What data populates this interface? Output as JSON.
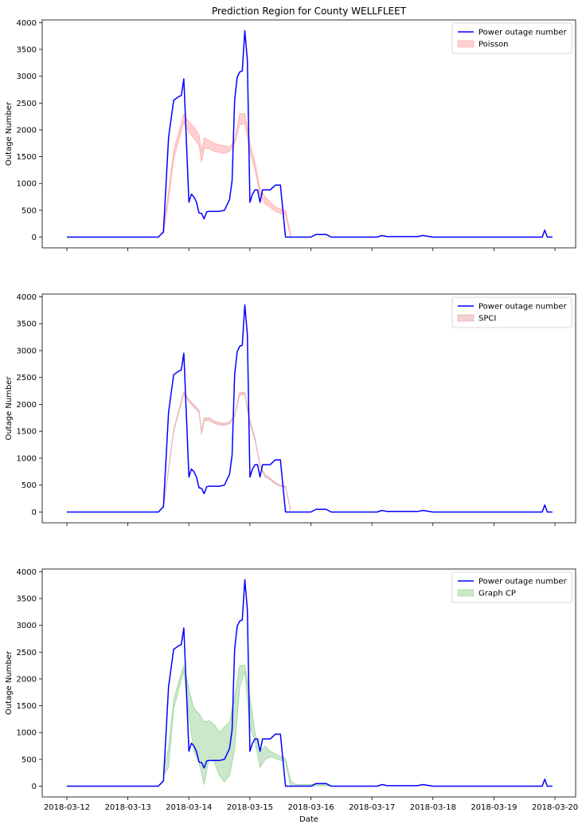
{
  "figure": {
    "title": "Prediction Region for County WELLFLEET"
  },
  "chart_data": [
    {
      "type": "line",
      "title": "Prediction Region for County WELLFLEET",
      "xlabel": "",
      "ylabel": "Outage Number",
      "x_unit": "date",
      "xlim": [
        "2018-03-12",
        "2018-03-20"
      ],
      "ylim": [
        -200,
        4050
      ],
      "yticks": [
        0,
        500,
        1000,
        1500,
        2000,
        2500,
        3000,
        3500,
        4000
      ],
      "xticks": [
        "2018-03-12",
        "2018-03-13",
        "2018-03-14",
        "2018-03-15",
        "2018-03-16",
        "2018-03-17",
        "2018-03-18",
        "2018-03-19",
        "2018-03-20"
      ],
      "show_xtick_labels": false,
      "grid": false,
      "legend": "top-right",
      "series": [
        {
          "name": "Power outage number",
          "kind": "line",
          "color": "#0000ff",
          "x": [
            "2018-03-12 00:00",
            "2018-03-13 12:00",
            "2018-03-13 14:00",
            "2018-03-13 16:00",
            "2018-03-13 18:00",
            "2018-03-13 20:00",
            "2018-03-13 21:00",
            "2018-03-13 22:00",
            "2018-03-13 23:00",
            "2018-03-14 00:00",
            "2018-03-14 01:00",
            "2018-03-14 02:00",
            "2018-03-14 03:00",
            "2018-03-14 04:00",
            "2018-03-14 05:00",
            "2018-03-14 06:00",
            "2018-03-14 07:00",
            "2018-03-14 08:00",
            "2018-03-14 12:00",
            "2018-03-14 14:00",
            "2018-03-14 16:00",
            "2018-03-14 17:00",
            "2018-03-14 18:00",
            "2018-03-14 19:00",
            "2018-03-14 20:00",
            "2018-03-14 21:00",
            "2018-03-14 22:00",
            "2018-03-14 23:00",
            "2018-03-15 00:00",
            "2018-03-15 01:00",
            "2018-03-15 02:00",
            "2018-03-15 03:00",
            "2018-03-15 04:00",
            "2018-03-15 05:00",
            "2018-03-15 06:00",
            "2018-03-15 08:00",
            "2018-03-15 10:00",
            "2018-03-15 12:00",
            "2018-03-15 14:00",
            "2018-03-16 00:00",
            "2018-03-16 02:00",
            "2018-03-16 06:00",
            "2018-03-16 08:00",
            "2018-03-17 02:00",
            "2018-03-17 04:00",
            "2018-03-17 06:00",
            "2018-03-17 18:00",
            "2018-03-17 20:00",
            "2018-03-18 00:00",
            "2018-03-18 02:00",
            "2018-03-19 19:00",
            "2018-03-19 20:00",
            "2018-03-19 21:00",
            "2018-03-19 23:00"
          ],
          "y": [
            0,
            0,
            100,
            1850,
            2550,
            2620,
            2640,
            2950,
            1800,
            650,
            800,
            750,
            650,
            450,
            440,
            340,
            470,
            480,
            480,
            500,
            700,
            1050,
            2550,
            2980,
            3080,
            3100,
            3850,
            3300,
            650,
            800,
            880,
            880,
            650,
            880,
            880,
            880,
            970,
            970,
            0,
            0,
            50,
            50,
            0,
            0,
            30,
            10,
            10,
            30,
            0,
            0,
            0,
            130,
            0,
            0
          ]
        },
        {
          "name": "Poisson",
          "kind": "band",
          "color": "#ffb3b3",
          "x": [
            "2018-03-13 14:00",
            "2018-03-13 16:00",
            "2018-03-13 18:00",
            "2018-03-13 20:00",
            "2018-03-13 22:00",
            "2018-03-14 00:00",
            "2018-03-14 02:00",
            "2018-03-14 04:00",
            "2018-03-14 05:00",
            "2018-03-14 06:00",
            "2018-03-14 08:00",
            "2018-03-14 10:00",
            "2018-03-14 12:00",
            "2018-03-14 14:00",
            "2018-03-14 16:00",
            "2018-03-14 18:00",
            "2018-03-14 20:00",
            "2018-03-14 22:00",
            "2018-03-15 00:00",
            "2018-03-15 02:00",
            "2018-03-15 04:00",
            "2018-03-15 06:00",
            "2018-03-15 08:00",
            "2018-03-15 10:00",
            "2018-03-15 12:00",
            "2018-03-15 14:00",
            "2018-03-15 16:00"
          ],
          "lower": [
            50,
            700,
            1450,
            1800,
            2150,
            1950,
            1850,
            1700,
            1400,
            1650,
            1650,
            1600,
            1580,
            1560,
            1600,
            1750,
            2100,
            2120,
            1600,
            1250,
            800,
            620,
            560,
            480,
            440,
            420,
            0
          ],
          "upper": [
            150,
            850,
            1600,
            1950,
            2300,
            2150,
            2050,
            1900,
            1600,
            1850,
            1800,
            1750,
            1720,
            1700,
            1680,
            1800,
            2300,
            2300,
            1750,
            1400,
            900,
            750,
            650,
            560,
            520,
            500,
            60
          ]
        }
      ]
    },
    {
      "type": "line",
      "title": "",
      "xlabel": "",
      "ylabel": "Outage Number",
      "x_unit": "date",
      "xlim": [
        "2018-03-12",
        "2018-03-20"
      ],
      "ylim": [
        -200,
        4050
      ],
      "yticks": [
        0,
        500,
        1000,
        1500,
        2000,
        2500,
        3000,
        3500,
        4000
      ],
      "xticks": [
        "2018-03-12",
        "2018-03-13",
        "2018-03-14",
        "2018-03-15",
        "2018-03-16",
        "2018-03-17",
        "2018-03-18",
        "2018-03-19",
        "2018-03-20"
      ],
      "show_xtick_labels": false,
      "grid": false,
      "legend": "top-right",
      "series": [
        {
          "name": "Power outage number",
          "kind": "line",
          "color": "#0000ff",
          "x": [
            "2018-03-12 00:00",
            "2018-03-13 12:00",
            "2018-03-13 14:00",
            "2018-03-13 16:00",
            "2018-03-13 18:00",
            "2018-03-13 20:00",
            "2018-03-13 21:00",
            "2018-03-13 22:00",
            "2018-03-13 23:00",
            "2018-03-14 00:00",
            "2018-03-14 01:00",
            "2018-03-14 02:00",
            "2018-03-14 03:00",
            "2018-03-14 04:00",
            "2018-03-14 05:00",
            "2018-03-14 06:00",
            "2018-03-14 07:00",
            "2018-03-14 08:00",
            "2018-03-14 12:00",
            "2018-03-14 14:00",
            "2018-03-14 16:00",
            "2018-03-14 17:00",
            "2018-03-14 18:00",
            "2018-03-14 19:00",
            "2018-03-14 20:00",
            "2018-03-14 21:00",
            "2018-03-14 22:00",
            "2018-03-14 23:00",
            "2018-03-15 00:00",
            "2018-03-15 01:00",
            "2018-03-15 02:00",
            "2018-03-15 03:00",
            "2018-03-15 04:00",
            "2018-03-15 05:00",
            "2018-03-15 06:00",
            "2018-03-15 08:00",
            "2018-03-15 10:00",
            "2018-03-15 12:00",
            "2018-03-15 14:00",
            "2018-03-16 00:00",
            "2018-03-16 02:00",
            "2018-03-16 06:00",
            "2018-03-16 08:00",
            "2018-03-17 02:00",
            "2018-03-17 04:00",
            "2018-03-17 06:00",
            "2018-03-17 18:00",
            "2018-03-17 20:00",
            "2018-03-18 00:00",
            "2018-03-18 02:00",
            "2018-03-19 19:00",
            "2018-03-19 20:00",
            "2018-03-19 21:00",
            "2018-03-19 23:00"
          ],
          "y": [
            0,
            0,
            100,
            1850,
            2550,
            2620,
            2640,
            2950,
            1800,
            650,
            800,
            750,
            650,
            450,
            440,
            340,
            470,
            480,
            480,
            500,
            700,
            1050,
            2550,
            2980,
            3080,
            3100,
            3850,
            3300,
            650,
            800,
            880,
            880,
            650,
            880,
            880,
            880,
            970,
            970,
            0,
            0,
            50,
            50,
            0,
            0,
            30,
            10,
            10,
            30,
            0,
            0,
            0,
            130,
            0,
            0
          ]
        },
        {
          "name": "SPCI",
          "kind": "band",
          "color": "#e8b4b4",
          "x": [
            "2018-03-13 14:00",
            "2018-03-13 16:00",
            "2018-03-13 18:00",
            "2018-03-13 20:00",
            "2018-03-13 22:00",
            "2018-03-14 00:00",
            "2018-03-14 02:00",
            "2018-03-14 04:00",
            "2018-03-14 05:00",
            "2018-03-14 06:00",
            "2018-03-14 08:00",
            "2018-03-14 10:00",
            "2018-03-14 12:00",
            "2018-03-14 14:00",
            "2018-03-14 16:00",
            "2018-03-14 18:00",
            "2018-03-14 20:00",
            "2018-03-14 22:00",
            "2018-03-15 00:00",
            "2018-03-15 02:00",
            "2018-03-15 04:00",
            "2018-03-15 06:00",
            "2018-03-15 08:00",
            "2018-03-15 10:00",
            "2018-03-15 12:00",
            "2018-03-15 14:00",
            "2018-03-15 16:00"
          ],
          "lower": [
            80,
            780,
            1500,
            1850,
            2200,
            2050,
            1950,
            1850,
            1450,
            1700,
            1700,
            1650,
            1620,
            1610,
            1640,
            1780,
            2180,
            2180,
            1650,
            1330,
            850,
            650,
            600,
            520,
            480,
            460,
            20
          ],
          "upper": [
            110,
            810,
            1530,
            1880,
            2240,
            2090,
            1990,
            1890,
            1500,
            1750,
            1750,
            1690,
            1660,
            1650,
            1670,
            1800,
            2220,
            2220,
            1700,
            1370,
            880,
            690,
            630,
            550,
            500,
            480,
            40
          ]
        }
      ]
    },
    {
      "type": "line",
      "title": "",
      "xlabel": "Date",
      "ylabel": "Outage Number",
      "x_unit": "date",
      "xlim": [
        "2018-03-12",
        "2018-03-20"
      ],
      "ylim": [
        -200,
        4050
      ],
      "yticks": [
        0,
        500,
        1000,
        1500,
        2000,
        2500,
        3000,
        3500,
        4000
      ],
      "xticks": [
        "2018-03-12",
        "2018-03-13",
        "2018-03-14",
        "2018-03-15",
        "2018-03-16",
        "2018-03-17",
        "2018-03-18",
        "2018-03-19",
        "2018-03-20"
      ],
      "show_xtick_labels": true,
      "grid": false,
      "legend": "top-right",
      "series": [
        {
          "name": "Power outage number",
          "kind": "line",
          "color": "#0000ff",
          "x": [
            "2018-03-12 00:00",
            "2018-03-13 12:00",
            "2018-03-13 14:00",
            "2018-03-13 16:00",
            "2018-03-13 18:00",
            "2018-03-13 20:00",
            "2018-03-13 21:00",
            "2018-03-13 22:00",
            "2018-03-13 23:00",
            "2018-03-14 00:00",
            "2018-03-14 01:00",
            "2018-03-14 02:00",
            "2018-03-14 03:00",
            "2018-03-14 04:00",
            "2018-03-14 05:00",
            "2018-03-14 06:00",
            "2018-03-14 07:00",
            "2018-03-14 08:00",
            "2018-03-14 12:00",
            "2018-03-14 14:00",
            "2018-03-14 16:00",
            "2018-03-14 17:00",
            "2018-03-14 18:00",
            "2018-03-14 19:00",
            "2018-03-14 20:00",
            "2018-03-14 21:00",
            "2018-03-14 22:00",
            "2018-03-14 23:00",
            "2018-03-15 00:00",
            "2018-03-15 01:00",
            "2018-03-15 02:00",
            "2018-03-15 03:00",
            "2018-03-15 04:00",
            "2018-03-15 05:00",
            "2018-03-15 06:00",
            "2018-03-15 08:00",
            "2018-03-15 10:00",
            "2018-03-15 12:00",
            "2018-03-15 14:00",
            "2018-03-16 00:00",
            "2018-03-16 02:00",
            "2018-03-16 06:00",
            "2018-03-16 08:00",
            "2018-03-17 02:00",
            "2018-03-17 04:00",
            "2018-03-17 06:00",
            "2018-03-17 18:00",
            "2018-03-17 20:00",
            "2018-03-18 00:00",
            "2018-03-18 02:00",
            "2018-03-19 19:00",
            "2018-03-19 20:00",
            "2018-03-19 21:00",
            "2018-03-19 23:00"
          ],
          "y": [
            0,
            0,
            100,
            1850,
            2550,
            2620,
            2640,
            2950,
            1800,
            650,
            800,
            750,
            650,
            450,
            440,
            340,
            470,
            480,
            480,
            500,
            700,
            1050,
            2550,
            2980,
            3080,
            3100,
            3850,
            3300,
            650,
            800,
            880,
            880,
            650,
            880,
            880,
            880,
            970,
            970,
            0,
            0,
            50,
            50,
            0,
            0,
            30,
            10,
            10,
            30,
            0,
            0,
            0,
            130,
            0,
            0
          ]
        },
        {
          "name": "Graph CP",
          "kind": "band",
          "color": "#a8d8a8",
          "x": [
            "2018-03-13 14:00",
            "2018-03-13 16:00",
            "2018-03-13 18:00",
            "2018-03-13 20:00",
            "2018-03-13 22:00",
            "2018-03-14 00:00",
            "2018-03-14 02:00",
            "2018-03-14 04:00",
            "2018-03-14 06:00",
            "2018-03-14 08:00",
            "2018-03-14 10:00",
            "2018-03-14 12:00",
            "2018-03-14 14:00",
            "2018-03-14 16:00",
            "2018-03-14 18:00",
            "2018-03-14 20:00",
            "2018-03-14 22:00",
            "2018-03-15 00:00",
            "2018-03-15 02:00",
            "2018-03-15 04:00",
            "2018-03-15 06:00",
            "2018-03-15 08:00",
            "2018-03-15 10:00",
            "2018-03-15 12:00",
            "2018-03-15 14:00",
            "2018-03-15 16:00",
            "2018-03-15 18:00",
            "2018-03-16 00:00",
            "2018-03-16 04:00",
            "2018-03-16 08:00"
          ],
          "lower": [
            200,
            350,
            1450,
            1800,
            2150,
            1300,
            650,
            450,
            30,
            550,
            450,
            200,
            80,
            200,
            700,
            1850,
            2150,
            1100,
            850,
            350,
            500,
            550,
            520,
            480,
            460,
            0,
            0,
            0,
            10,
            0
          ],
          "upper": [
            300,
            700,
            1600,
            1950,
            2250,
            1800,
            1450,
            1350,
            1200,
            1220,
            1150,
            1000,
            1100,
            1200,
            1650,
            2250,
            2250,
            1650,
            1000,
            650,
            750,
            650,
            600,
            560,
            520,
            100,
            30,
            30,
            40,
            10
          ]
        }
      ]
    }
  ]
}
